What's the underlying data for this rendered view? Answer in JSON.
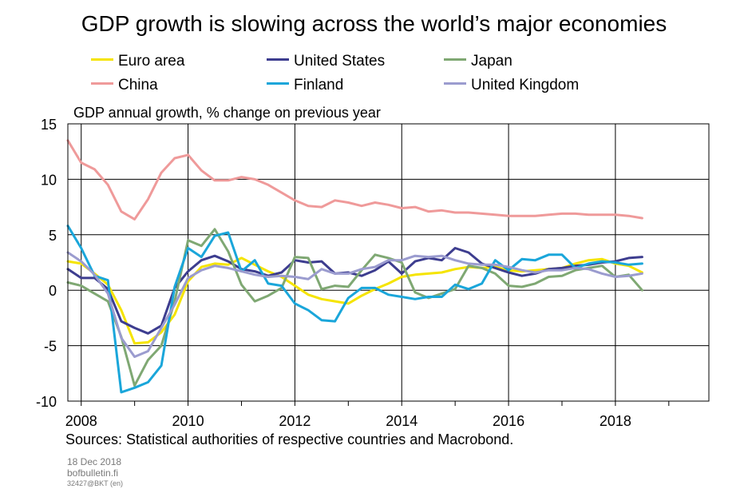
{
  "chart_data": {
    "type": "line",
    "title": "GDP growth is slowing across the world’s major economies",
    "ylabel": "GDP annual growth, % change on previous year",
    "xlabel": "",
    "xlim": [
      2007.75,
      2019.75
    ],
    "ylim": [
      -10,
      15
    ],
    "yticks": [
      "15",
      "10",
      "5",
      "0",
      "-5",
      "-10"
    ],
    "xticks": [
      "2008",
      "2010",
      "2012",
      "2014",
      "2016",
      "2018"
    ],
    "x": [
      2007.75,
      2008.0,
      2008.25,
      2008.5,
      2008.75,
      2009.0,
      2009.25,
      2009.5,
      2009.75,
      2010.0,
      2010.25,
      2010.5,
      2010.75,
      2011.0,
      2011.25,
      2011.5,
      2011.75,
      2012.0,
      2012.25,
      2012.5,
      2012.75,
      2013.0,
      2013.25,
      2013.5,
      2013.75,
      2014.0,
      2014.25,
      2014.5,
      2014.75,
      2015.0,
      2015.25,
      2015.5,
      2015.75,
      2016.0,
      2016.25,
      2016.5,
      2016.75,
      2017.0,
      2017.25,
      2017.5,
      2017.75,
      2018.0,
      2018.25,
      2018.5
    ],
    "legend_position": "top",
    "grid": true,
    "series": [
      {
        "name": "Euro area",
        "color": "#f5e400",
        "values": [
          2.6,
          2.4,
          1.5,
          0.5,
          -1.8,
          -4.8,
          -4.7,
          -3.8,
          -2.2,
          0.8,
          2.1,
          2.4,
          2.3,
          2.9,
          2.3,
          1.7,
          1.2,
          0.4,
          -0.4,
          -0.8,
          -1.0,
          -1.2,
          -0.5,
          0.1,
          0.6,
          1.2,
          1.4,
          1.5,
          1.6,
          1.9,
          2.1,
          2.0,
          2.1,
          1.8,
          1.7,
          1.8,
          1.9,
          2.0,
          2.4,
          2.7,
          2.8,
          2.4,
          2.2,
          1.6
        ]
      },
      {
        "name": "United States",
        "color": "#3d3d8f",
        "values": [
          1.9,
          1.1,
          1.1,
          0.1,
          -2.8,
          -3.4,
          -3.9,
          -3.2,
          0.2,
          1.7,
          2.7,
          3.1,
          2.6,
          1.9,
          1.7,
          1.3,
          1.6,
          2.7,
          2.5,
          2.6,
          1.5,
          1.6,
          1.3,
          1.8,
          2.6,
          1.5,
          2.6,
          2.9,
          2.7,
          3.8,
          3.4,
          2.4,
          2.0,
          1.6,
          1.3,
          1.5,
          1.9,
          2.0,
          2.2,
          2.3,
          2.5,
          2.6,
          2.9,
          3.0
        ]
      },
      {
        "name": "Japan",
        "color": "#7fa873",
        "values": [
          0.7,
          0.4,
          -0.3,
          -1.0,
          -4.2,
          -8.6,
          -6.3,
          -5.0,
          -1.0,
          4.5,
          4.0,
          5.5,
          3.5,
          0.5,
          -1.0,
          -0.5,
          0.2,
          3.0,
          2.9,
          0.1,
          0.4,
          0.3,
          1.8,
          3.2,
          2.9,
          2.5,
          -0.2,
          -0.7,
          -0.3,
          0.1,
          2.2,
          2.0,
          1.5,
          0.4,
          0.3,
          0.6,
          1.2,
          1.3,
          1.8,
          2.0,
          2.2,
          1.2,
          1.4,
          0.0
        ]
      },
      {
        "name": "China",
        "color": "#ef9a9a",
        "values": [
          13.5,
          11.5,
          10.9,
          9.5,
          7.1,
          6.4,
          8.2,
          10.6,
          11.9,
          12.2,
          10.8,
          9.9,
          9.9,
          10.2,
          10.0,
          9.5,
          8.8,
          8.1,
          7.6,
          7.5,
          8.1,
          7.9,
          7.6,
          7.9,
          7.7,
          7.4,
          7.5,
          7.1,
          7.2,
          7.0,
          7.0,
          6.9,
          6.8,
          6.7,
          6.7,
          6.7,
          6.8,
          6.9,
          6.9,
          6.8,
          6.8,
          6.8,
          6.7,
          6.5
        ]
      },
      {
        "name": "Finland",
        "color": "#1aa6da",
        "values": [
          5.8,
          3.8,
          1.3,
          0.9,
          -9.2,
          -8.8,
          -8.3,
          -6.8,
          0.3,
          3.8,
          3.0,
          4.9,
          5.2,
          1.7,
          2.7,
          0.6,
          0.4,
          -1.2,
          -1.8,
          -2.7,
          -2.8,
          -0.7,
          0.2,
          0.2,
          -0.4,
          -0.6,
          -0.8,
          -0.6,
          -0.6,
          0.5,
          0.1,
          0.6,
          2.7,
          1.8,
          2.8,
          2.7,
          3.2,
          3.2,
          2.0,
          2.4,
          2.6,
          2.5,
          2.3,
          2.4
        ]
      },
      {
        "name": "United Kingdom",
        "color": "#9b9ccf",
        "values": [
          3.4,
          2.6,
          1.4,
          -0.3,
          -4.3,
          -6.0,
          -5.5,
          -3.4,
          -1.3,
          1.1,
          1.8,
          2.2,
          2.0,
          1.7,
          1.4,
          1.2,
          1.3,
          1.2,
          1.0,
          1.9,
          1.5,
          1.5,
          1.9,
          2.1,
          2.7,
          2.7,
          3.1,
          3.0,
          3.1,
          2.7,
          2.4,
          2.3,
          2.3,
          2.1,
          1.8,
          1.6,
          1.8,
          1.8,
          2.0,
          1.9,
          1.5,
          1.2,
          1.3,
          1.5
        ]
      }
    ]
  },
  "sources": "Sources: Statistical authorities of respective countries and Macrobond.",
  "footer": {
    "date": "18 Dec 2018",
    "site": "bofbulletin.fi",
    "code": "32427@BKT  (en)"
  }
}
